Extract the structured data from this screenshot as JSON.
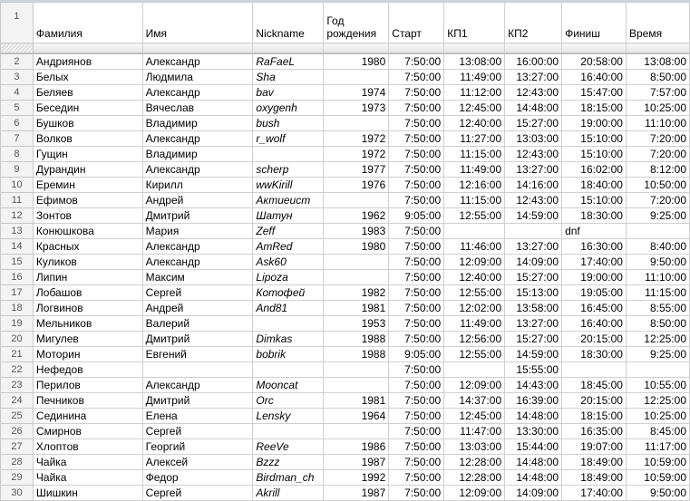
{
  "headers": [
    "Фамилия",
    "Имя",
    "Nickname",
    "Год рождения",
    "Старт",
    "КП1",
    "КП2",
    "Финиш",
    "Время"
  ],
  "header_row_number": "1",
  "rows": [
    {
      "n": "2",
      "c": [
        "Андриянов",
        "Александр",
        "RaFaeL",
        "1980",
        "7:50:00",
        "13:08:00",
        "16:00:00",
        "20:58:00",
        "13:08:00"
      ]
    },
    {
      "n": "3",
      "c": [
        "Белых",
        "Людмила",
        "Sha",
        "",
        "7:50:00",
        "11:49:00",
        "13:27:00",
        "16:40:00",
        "8:50:00"
      ]
    },
    {
      "n": "4",
      "c": [
        "Беляев",
        "Александр",
        "bav",
        "1974",
        "7:50:00",
        "11:12:00",
        "12:43:00",
        "15:47:00",
        "7:57:00"
      ]
    },
    {
      "n": "5",
      "c": [
        "Беседин",
        "Вячеслав",
        "oxygenh",
        "1973",
        "7:50:00",
        "12:45:00",
        "14:48:00",
        "18:15:00",
        "10:25:00"
      ]
    },
    {
      "n": "6",
      "c": [
        "Бушков",
        "Владимир",
        "bush",
        "",
        "7:50:00",
        "12:40:00",
        "15:27:00",
        "19:00:00",
        "11:10:00"
      ]
    },
    {
      "n": "7",
      "c": [
        "Волков",
        "Александр",
        "r_wolf",
        "1972",
        "7:50:00",
        "11:27:00",
        "13:03:00",
        "15:10:00",
        "7:20:00"
      ]
    },
    {
      "n": "8",
      "c": [
        "Гущин",
        "Владимир",
        "",
        "1972",
        "7:50:00",
        "11:15:00",
        "12:43:00",
        "15:10:00",
        "7:20:00"
      ]
    },
    {
      "n": "9",
      "c": [
        "Дурандин",
        "Александр",
        "scherp",
        "1977",
        "7:50:00",
        "11:49:00",
        "13:27:00",
        "16:02:00",
        "8:12:00"
      ]
    },
    {
      "n": "10",
      "c": [
        "Еремин",
        "Кирилл",
        "wwKirill",
        "1976",
        "7:50:00",
        "12:16:00",
        "14:16:00",
        "18:40:00",
        "10:50:00"
      ]
    },
    {
      "n": "11",
      "c": [
        "Ефимов",
        "Андрей",
        "Актиеист",
        "",
        "7:50:00",
        "11:15:00",
        "12:43:00",
        "15:10:00",
        "7:20:00"
      ]
    },
    {
      "n": "12",
      "c": [
        "Зонтов",
        "Дмитрий",
        "Шатун",
        "1962",
        "9:05:00",
        "12:55:00",
        "14:59:00",
        "18:30:00",
        "9:25:00"
      ]
    },
    {
      "n": "13",
      "c": [
        "Конюшкова",
        "Мария",
        "Zeff",
        "1983",
        "7:50:00",
        "",
        "",
        "dnf",
        ""
      ]
    },
    {
      "n": "14",
      "c": [
        "Красных",
        "Александр",
        "AmRed",
        "1980",
        "7:50:00",
        "11:46:00",
        "13:27:00",
        "16:30:00",
        "8:40:00"
      ]
    },
    {
      "n": "15",
      "c": [
        "Куликов",
        "Александр",
        "Ask60",
        "",
        "7:50:00",
        "12:09:00",
        "14:09:00",
        "17:40:00",
        "9:50:00"
      ]
    },
    {
      "n": "16",
      "c": [
        "Липин",
        "Максим",
        "Lipoza",
        "",
        "7:50:00",
        "12:40:00",
        "15:27:00",
        "19:00:00",
        "11:10:00"
      ]
    },
    {
      "n": "17",
      "c": [
        "Лобашов",
        "Сергей",
        "Котофей",
        "1982",
        "7:50:00",
        "12:55:00",
        "15:13:00",
        "19:05:00",
        "11:15:00"
      ]
    },
    {
      "n": "18",
      "c": [
        "Логвинов",
        "Андрей",
        "And81",
        "1981",
        "7:50:00",
        "12:02:00",
        "13:58:00",
        "16:45:00",
        "8:55:00"
      ]
    },
    {
      "n": "19",
      "c": [
        "Мельников",
        "Валерий",
        "",
        "1953",
        "7:50:00",
        "11:49:00",
        "13:27:00",
        "16:40:00",
        "8:50:00"
      ]
    },
    {
      "n": "20",
      "c": [
        "Мигулев",
        "Дмитрий",
        "Dimkas",
        "1988",
        "7:50:00",
        "12:56:00",
        "15:27:00",
        "20:15:00",
        "12:25:00"
      ]
    },
    {
      "n": "21",
      "c": [
        "Моторин",
        "Евгений",
        "bobrik",
        "1988",
        "9:05:00",
        "12:55:00",
        "14:59:00",
        "18:30:00",
        "9:25:00"
      ]
    },
    {
      "n": "22",
      "c": [
        "Нефедов",
        "",
        "",
        "",
        "7:50:00",
        "",
        "15:55:00",
        "",
        ""
      ]
    },
    {
      "n": "23",
      "c": [
        "Перилов",
        "Александр",
        "Mooncat",
        "",
        "7:50:00",
        "12:09:00",
        "14:43:00",
        "18:45:00",
        "10:55:00"
      ]
    },
    {
      "n": "24",
      "c": [
        "Печников",
        "Дмитрий",
        "Orc",
        "1981",
        "7:50:00",
        "14:37:00",
        "16:39:00",
        "20:15:00",
        "12:25:00"
      ]
    },
    {
      "n": "25",
      "c": [
        "Сединина",
        "Елена",
        "Lensky",
        "1964",
        "7:50:00",
        "12:45:00",
        "14:48:00",
        "18:15:00",
        "10:25:00"
      ]
    },
    {
      "n": "26",
      "c": [
        "Смирнов",
        "Сергей",
        "",
        "",
        "7:50:00",
        "11:47:00",
        "13:30:00",
        "16:35:00",
        "8:45:00"
      ]
    },
    {
      "n": "27",
      "c": [
        "Хлоптов",
        "Георгий",
        "ReeVe",
        "1986",
        "7:50:00",
        "13:03:00",
        "15:44:00",
        "19:07:00",
        "11:17:00"
      ]
    },
    {
      "n": "28",
      "c": [
        "Чайка",
        "Алексей",
        "Bzzz",
        "1987",
        "7:50:00",
        "12:28:00",
        "14:48:00",
        "18:49:00",
        "10:59:00"
      ]
    },
    {
      "n": "29",
      "c": [
        "Чайка",
        "Федор",
        "Birdman_ch",
        "1992",
        "7:50:00",
        "12:28:00",
        "14:48:00",
        "18:49:00",
        "10:59:00"
      ]
    },
    {
      "n": "30",
      "c": [
        "Шишкин",
        "Сергей",
        "Akrill",
        "1987",
        "7:50:00",
        "12:09:00",
        "14:09:00",
        "17:40:00",
        "9:50:00"
      ]
    }
  ]
}
